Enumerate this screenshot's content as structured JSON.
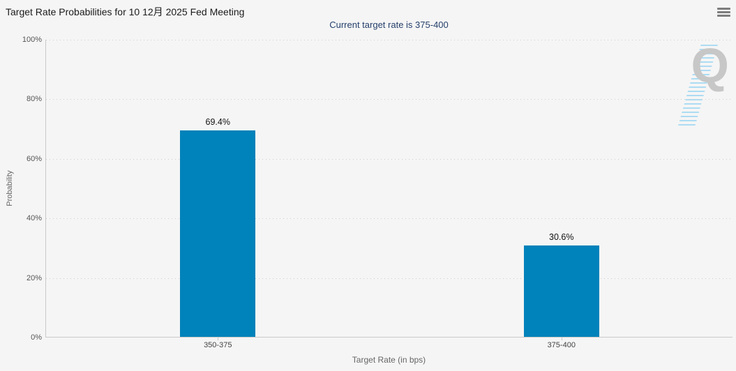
{
  "header": {
    "title": "Target Rate Probabilities for 10 12月 2025 Fed Meeting",
    "subtitle": "Current target rate is 375-400"
  },
  "watermark": {
    "letter": "Q",
    "icon": "quikstrike-logo-icon"
  },
  "icons": {
    "menu": "hamburger-icon"
  },
  "colors": {
    "background": "#f5f5f5",
    "bar": "#0082ba",
    "subtitle_text": "#26406b",
    "title_text": "#1a1a1a",
    "axis_line": "#c9c9c9",
    "tick_text": "#555555",
    "axis_title_text": "#666666",
    "watermark_gray": "#c7c7c7",
    "watermark_blue": "#a5d9f3"
  },
  "chart_data": {
    "type": "bar",
    "title": "Target Rate Probabilities for 10 12月 2025 Fed Meeting",
    "subtitle": "Current target rate is 375-400",
    "categories": [
      "350-375",
      "375-400"
    ],
    "values": [
      69.4,
      30.6
    ],
    "value_labels": [
      "69.4%",
      "30.6%"
    ],
    "xlabel": "Target Rate (in bps)",
    "ylabel": "Probability",
    "ylim": [
      0,
      100
    ],
    "ytick_values": [
      0,
      20,
      40,
      60,
      80,
      100
    ],
    "ytick_labels": [
      "0%",
      "20%",
      "40%",
      "60%",
      "80%",
      "100%"
    ],
    "grid": "dotted-horizontal",
    "legend": "none",
    "bar_color": "#0082ba"
  }
}
